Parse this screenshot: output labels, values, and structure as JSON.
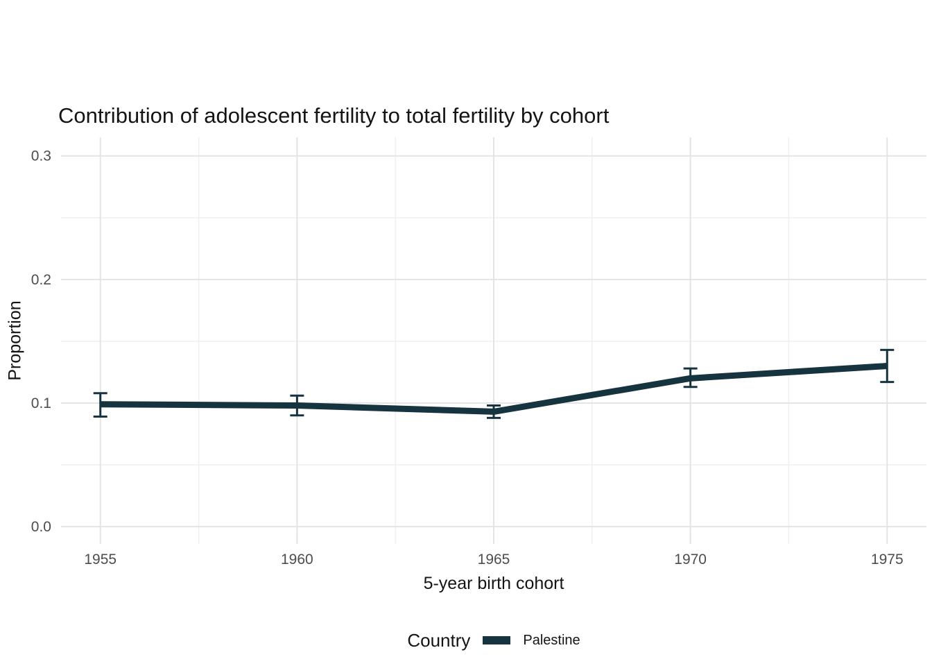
{
  "title": "Contribution of adolescent fertility to total fertility by cohort",
  "chart_data": {
    "type": "line",
    "title": "Contribution of adolescent fertility to total fertility by cohort",
    "xlabel": "5-year birth cohort",
    "ylabel": "Proportion",
    "x": [
      1955,
      1960,
      1965,
      1970,
      1975
    ],
    "series": [
      {
        "name": "Palestine",
        "values": [
          0.099,
          0.098,
          0.093,
          0.12,
          0.13
        ],
        "ci_low": [
          0.089,
          0.09,
          0.088,
          0.113,
          0.117
        ],
        "ci_high": [
          0.108,
          0.106,
          0.098,
          0.128,
          0.143
        ],
        "color": "#163440"
      }
    ],
    "x_ticks": [
      1955,
      1960,
      1965,
      1970,
      1975
    ],
    "x_tick_labels": [
      "1955",
      "1960",
      "1965",
      "1970",
      "1975"
    ],
    "x_minor_ticks": [
      1957.5,
      1962.5,
      1967.5,
      1972.5
    ],
    "y_ticks": [
      0.0,
      0.1,
      0.2,
      0.3
    ],
    "y_tick_labels": [
      "0.0",
      "0.1",
      "0.2",
      "0.3"
    ],
    "y_minor_ticks": [
      0.05,
      0.15,
      0.25
    ],
    "xlim": [
      1954,
      1976
    ],
    "ylim": [
      -0.014,
      0.315
    ],
    "grid": true,
    "legend_position": "bottom",
    "errorbars": true
  },
  "legend": {
    "title": "Country",
    "items": [
      {
        "label": "Palestine",
        "color": "#163440"
      }
    ]
  },
  "colors": {
    "line": "#163440",
    "grid_major": "#e4e4e4",
    "grid_minor": "#efefef",
    "tick_text": "#4d4d4d",
    "text": "#141414",
    "background": "#ffffff"
  }
}
